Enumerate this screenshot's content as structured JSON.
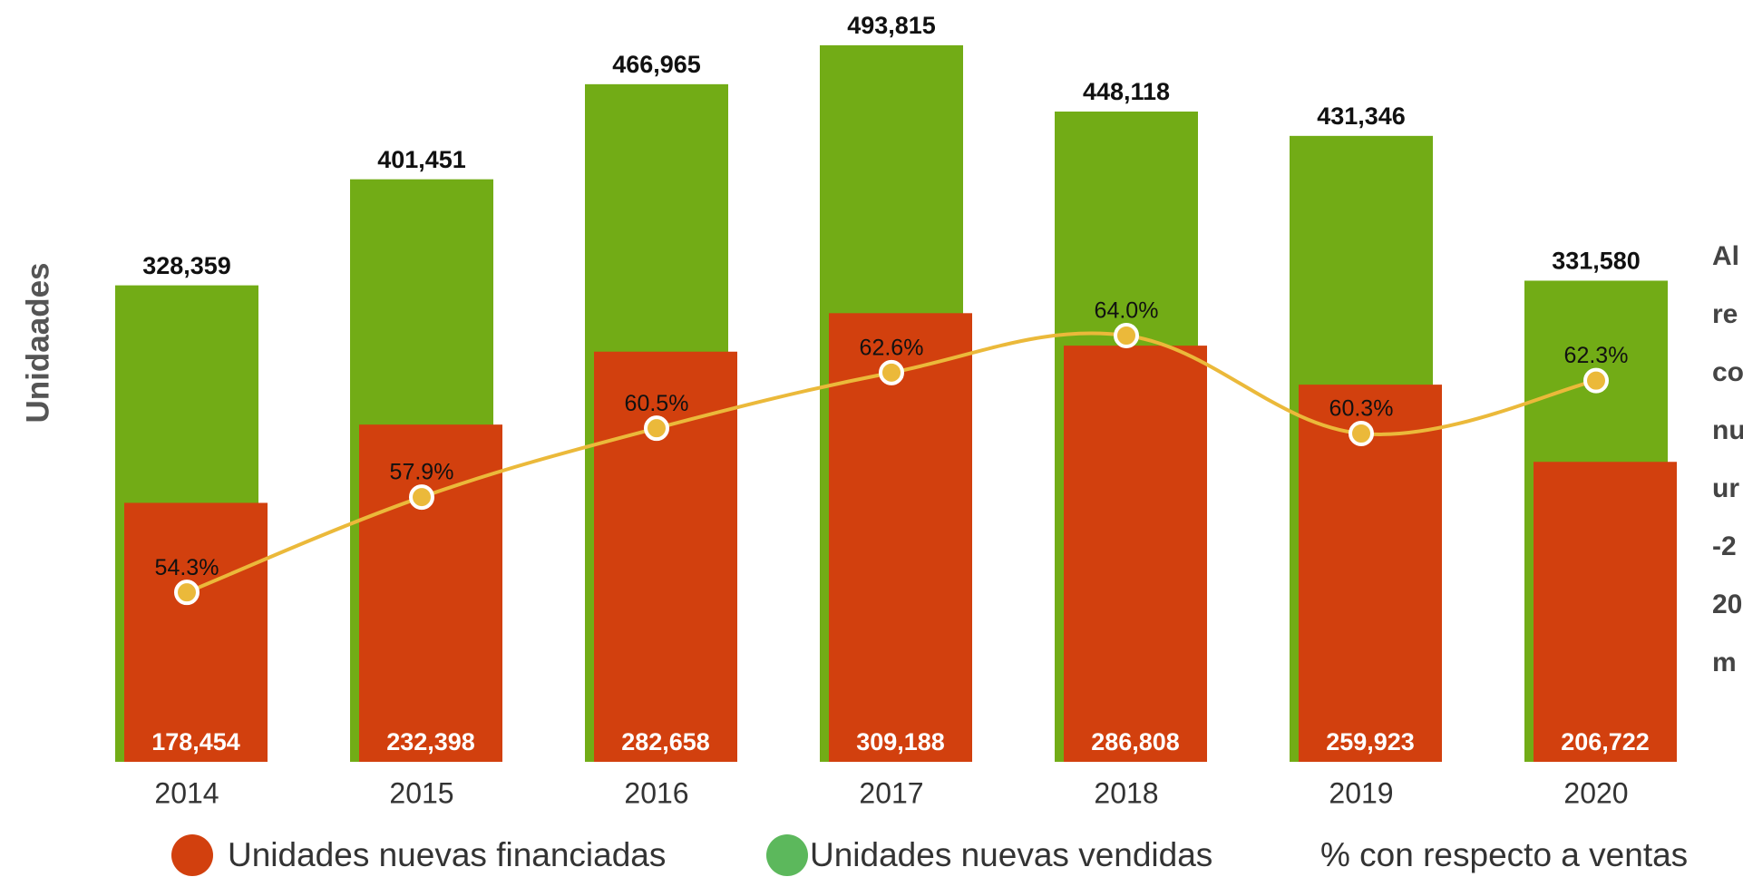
{
  "chart_data": {
    "type": "bar",
    "y_label": "Unidaades",
    "categories": [
      "2014",
      "2015",
      "2016",
      "2017",
      "2018",
      "2019",
      "2020"
    ],
    "ylim": [
      0,
      520000
    ],
    "y2lim": [
      47.9,
      76.4
    ],
    "series": [
      {
        "name": "Unidades nuevas vendidas",
        "color": "#72ac16",
        "values": [
          328359,
          401451,
          466965,
          493815,
          448118,
          431346,
          331580
        ],
        "value_labels": [
          "328,359",
          "401,451",
          "466,965",
          "493,815",
          "448,118",
          "431,346",
          "331,580"
        ]
      },
      {
        "name": "Unidades nuevas financiadas",
        "color": "#d2400e",
        "values": [
          178454,
          232398,
          282658,
          309188,
          286808,
          259923,
          206722
        ],
        "value_labels": [
          "178,454",
          "232,398",
          "282,658",
          "309,188",
          "286,808",
          "259,923",
          "206,722"
        ]
      },
      {
        "name": "% con respecto a ventas",
        "type": "line",
        "axis": "y2",
        "color": "#ebb93a",
        "values": [
          54.3,
          57.9,
          60.5,
          62.6,
          64.0,
          60.3,
          62.3
        ],
        "value_labels": [
          "54.3%",
          "57.9%",
          "60.5%",
          "62.6%",
          "64.0%",
          "60.3%",
          "62.3%"
        ]
      }
    ],
    "annotation_lines": [
      "Al",
      "re",
      "co",
      "nu",
      "ur",
      "-2",
      "20",
      "m"
    ]
  }
}
